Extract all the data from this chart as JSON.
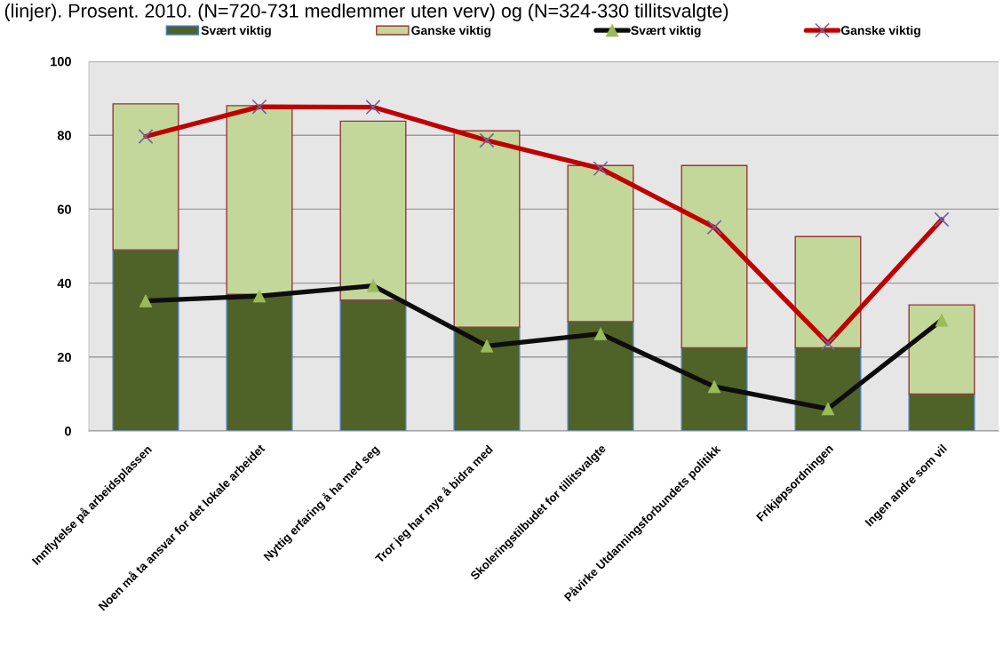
{
  "chart_data": {
    "type": "bar",
    "title": "(linjer). Prosent. 2010. (N=720-731 medlemmer uten verv) og (N=324-330 tillitsvalgte)",
    "categories": [
      "Innflytelse på arbeidsplassen",
      "Noen må ta ansvar for det lokale arbeidet",
      "Nyttig erfaring å ha med seg",
      "Tror jeg har mye å bidra med",
      "Skoleringstilbudet for tillitsvalgte",
      "Påvirke Utdanningsforbundets politikk",
      "Frikjøpsordningen",
      "Ingen andre som vil"
    ],
    "stacked": true,
    "series": [
      {
        "name": "Svært viktig",
        "color": "#4f6228",
        "values": [
          49.0,
          37.0,
          35.4,
          28.1,
          29.6,
          22.5,
          22.5,
          10.0
        ]
      },
      {
        "name": "Ganske viktig",
        "color": "#c4d79b",
        "values": [
          39.5,
          51.0,
          48.4,
          53.1,
          42.2,
          49.3,
          30.1,
          24.1
        ]
      },
      {
        "name": "Svært viktig",
        "type": "line",
        "color": "#0d0d0d",
        "marker": "triangle",
        "values": [
          35.2,
          36.5,
          39.3,
          23.0,
          26.3,
          12.0,
          6.0,
          30.0
        ]
      },
      {
        "name": "Ganske viktig",
        "type": "line",
        "color": "#c00000",
        "marker": "cross",
        "values": [
          79.7,
          87.7,
          87.6,
          78.6,
          71.0,
          55.1,
          23.7,
          57.2
        ]
      }
    ],
    "ylim": [
      0,
      100
    ],
    "yticks": [
      0,
      20,
      40,
      60,
      80,
      100
    ],
    "grid": "y",
    "legend": "top",
    "line_style": "solid"
  }
}
